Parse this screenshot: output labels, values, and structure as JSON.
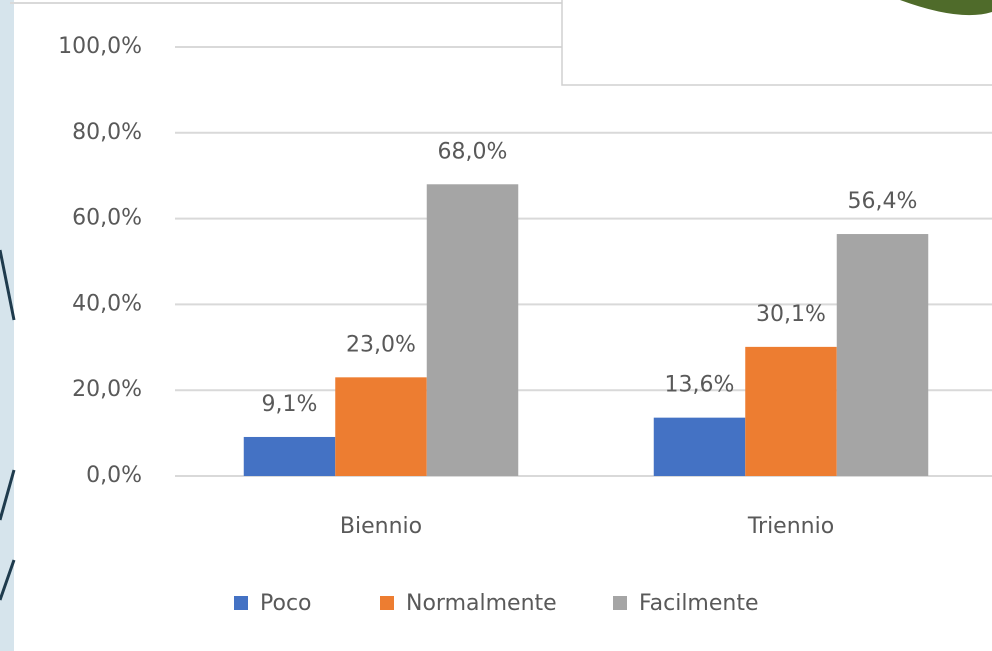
{
  "chart_data": {
    "type": "bar",
    "categories": [
      "Biennio",
      "Triennio"
    ],
    "series": [
      {
        "name": "Poco",
        "color": "#4472c4",
        "values": [
          9.1,
          13.6
        ],
        "value_labels": [
          "9,1%",
          "13,6%"
        ]
      },
      {
        "name": "Normalmente",
        "color": "#ed7d31",
        "values": [
          23.0,
          30.1
        ],
        "value_labels": [
          "23,0%",
          "30,1%"
        ]
      },
      {
        "name": "Facilmente",
        "color": "#a5a5a5",
        "values": [
          68.0,
          56.4
        ],
        "value_labels": [
          "68,0%",
          "56,4%"
        ]
      }
    ],
    "ylim": [
      0,
      100
    ],
    "yticks": [
      {
        "value": 0,
        "label": "0,0%"
      },
      {
        "value": 20,
        "label": "20,0%"
      },
      {
        "value": 40,
        "label": "40,0%"
      },
      {
        "value": 60,
        "label": "60,0%"
      },
      {
        "value": 80,
        "label": "80,0%"
      },
      {
        "value": 100,
        "label": "100,0%"
      }
    ],
    "grid": true,
    "legend": "bottom"
  }
}
